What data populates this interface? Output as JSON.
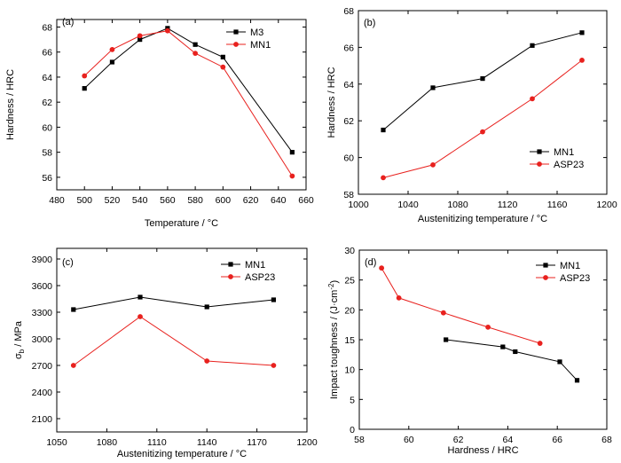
{
  "colors": {
    "black": "#000000",
    "red": "#e8211e"
  },
  "chart_data": [
    {
      "type": "line",
      "panel_label": "(a)",
      "xlabel": "Temperature / °C",
      "ylabel": "Hardness / HRC",
      "xlim": [
        480,
        660
      ],
      "ylim": [
        55,
        68.6
      ],
      "xticks": [
        480,
        500,
        520,
        540,
        560,
        580,
        600,
        620,
        640,
        660
      ],
      "yticks": [
        56,
        58,
        60,
        62,
        64,
        66,
        68
      ],
      "legend_position": "top-right",
      "series": [
        {
          "name": "M3",
          "color": "#000000",
          "marker": "square",
          "x": [
            500,
            520,
            540,
            560,
            580,
            600,
            650
          ],
          "y": [
            63.1,
            65.2,
            67.0,
            67.9,
            66.6,
            65.6,
            58.0
          ]
        },
        {
          "name": "MN1",
          "color": "#e8211e",
          "marker": "circle",
          "x": [
            500,
            520,
            540,
            560,
            580,
            600,
            650
          ],
          "y": [
            64.1,
            66.2,
            67.3,
            67.7,
            65.9,
            64.8,
            56.1
          ]
        }
      ]
    },
    {
      "type": "line",
      "panel_label": "(b)",
      "xlabel": "Austenitizing temperature / °C",
      "ylabel": "Hardness / HRC",
      "xlim": [
        1000,
        1200
      ],
      "ylim": [
        58,
        68
      ],
      "xticks": [
        1000,
        1040,
        1080,
        1120,
        1160,
        1200
      ],
      "yticks": [
        58,
        60,
        62,
        64,
        66,
        68
      ],
      "legend_position": "bottom-right",
      "series": [
        {
          "name": "MN1",
          "color": "#000000",
          "marker": "square",
          "x": [
            1020,
            1060,
            1100,
            1140,
            1180
          ],
          "y": [
            61.5,
            63.8,
            64.3,
            66.1,
            66.8
          ]
        },
        {
          "name": "ASP23",
          "color": "#e8211e",
          "marker": "circle",
          "x": [
            1020,
            1060,
            1100,
            1140,
            1180
          ],
          "y": [
            58.9,
            59.6,
            61.4,
            63.2,
            65.3
          ]
        }
      ]
    },
    {
      "type": "line",
      "panel_label": "(c)",
      "xlabel": "Austenitizing temperature / °C",
      "ylabel": "σb / MPa",
      "ylabel_main": "σ",
      "ylabel_sub": "b",
      "ylabel_rest": " / MPa",
      "xlim": [
        1050,
        1200
      ],
      "ylim": [
        1950,
        4020
      ],
      "xticks": [
        1050,
        1080,
        1110,
        1140,
        1170,
        1200
      ],
      "yticks": [
        2100,
        2400,
        2700,
        3000,
        3300,
        3600,
        3900
      ],
      "legend_position": "top-right",
      "series": [
        {
          "name": "MN1",
          "color": "#000000",
          "marker": "square",
          "x": [
            1060,
            1100,
            1140,
            1180
          ],
          "y": [
            3330,
            3470,
            3360,
            3440
          ]
        },
        {
          "name": "ASP23",
          "color": "#e8211e",
          "marker": "circle",
          "x": [
            1060,
            1100,
            1140,
            1180
          ],
          "y": [
            2700,
            3250,
            2750,
            2700
          ]
        }
      ]
    },
    {
      "type": "line",
      "panel_label": "(d)",
      "xlabel": "Hardness / HRC",
      "ylabel": "Impact toughness / (J·cm⁻²)",
      "ylabel_main": "Impact toughness / (J·cm",
      "ylabel_sup": "-2",
      "ylabel_rest": ")",
      "xlim": [
        58,
        68
      ],
      "ylim": [
        0,
        30
      ],
      "xticks": [
        58,
        60,
        62,
        64,
        66,
        68
      ],
      "yticks": [
        0,
        5,
        10,
        15,
        20,
        25,
        30
      ],
      "legend_position": "top-right",
      "series": [
        {
          "name": "MN1",
          "color": "#000000",
          "marker": "square",
          "x": [
            61.5,
            63.8,
            64.3,
            66.1,
            66.8
          ],
          "y": [
            15.0,
            13.8,
            13.0,
            11.3,
            8.2
          ]
        },
        {
          "name": "ASP23",
          "color": "#e8211e",
          "marker": "circle",
          "x": [
            58.9,
            59.6,
            61.4,
            63.2,
            65.3
          ],
          "y": [
            27.0,
            22.0,
            19.5,
            17.1,
            14.4
          ]
        }
      ]
    }
  ]
}
